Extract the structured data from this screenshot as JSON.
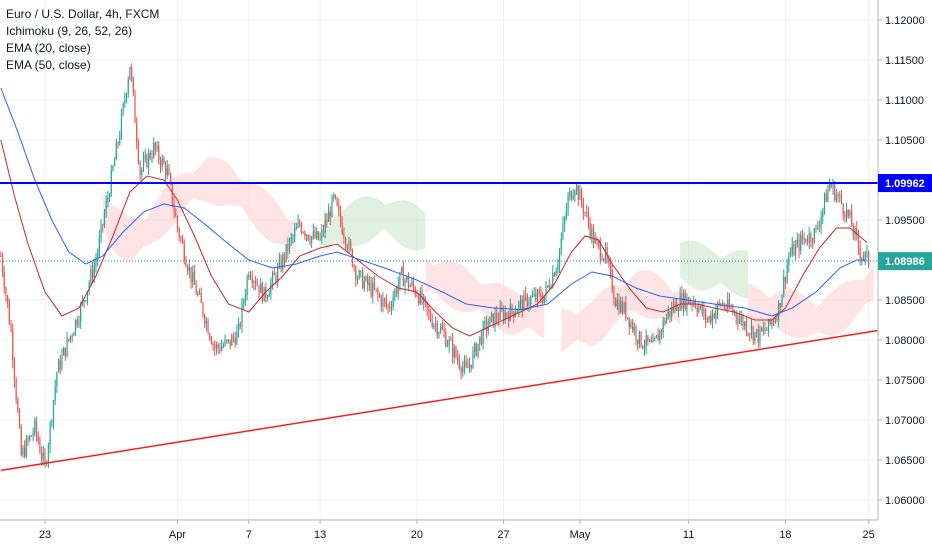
{
  "legend": {
    "title": "Euro / U.S. Dollar, 4h, FXCM",
    "ind1": "Ichimoku (9, 26, 52, 26)",
    "ind2": "EMA (20, close)",
    "ind3": "EMA (50, close)"
  },
  "colors": {
    "up": "#26a69a",
    "down": "#ef5350",
    "ema20": "#c62828",
    "ema50": "#2962ff",
    "resistance": "#0000ff",
    "support": "#ff1a1a",
    "cloud_bear": "#ffcdd2",
    "cloud_bull": "#c8e6c9",
    "grid": "#eef0f3",
    "last_price": "#26a69a"
  },
  "chart_data": {
    "type": "candlestick",
    "y_axis": {
      "min": 1.0575,
      "max": 1.1225,
      "ticks": [
        "1.12000",
        "1.11500",
        "1.11000",
        "1.10500",
        "1.10000",
        "1.09500",
        "1.09000",
        "1.08500",
        "1.08000",
        "1.07500",
        "1.07000",
        "1.06500",
        "1.06000"
      ]
    },
    "x_axis": {
      "labels": [
        "23",
        "Apr",
        "7",
        "13",
        "20",
        "27",
        "May",
        "11",
        "18",
        "25"
      ],
      "label_bar_index": [
        26,
        104,
        146,
        188,
        245,
        296,
        341,
        405,
        462,
        511
      ]
    },
    "bars_total": 517,
    "horizontal_line": {
      "value": 1.09962,
      "label": "1.09962"
    },
    "last_price": {
      "value": 1.08986,
      "label": "1.08986"
    },
    "trend_line": {
      "from": {
        "bar": 0,
        "price": 1.0637
      },
      "to": {
        "bar": 517,
        "price": 1.0812
      }
    },
    "price_path": [
      [
        0,
        1.0905
      ],
      [
        6,
        1.081
      ],
      [
        12,
        1.0655
      ],
      [
        20,
        1.069
      ],
      [
        26,
        1.064
      ],
      [
        33,
        1.076
      ],
      [
        40,
        1.08
      ],
      [
        48,
        1.0845
      ],
      [
        56,
        1.09
      ],
      [
        64,
        1.099
      ],
      [
        70,
        1.106
      ],
      [
        76,
        1.1145
      ],
      [
        82,
        1.101
      ],
      [
        90,
        1.104
      ],
      [
        98,
        1.101
      ],
      [
        104,
        1.094
      ],
      [
        112,
        1.088
      ],
      [
        120,
        1.083
      ],
      [
        126,
        1.079
      ],
      [
        134,
        1.0795
      ],
      [
        140,
        1.081
      ],
      [
        146,
        1.089
      ],
      [
        155,
        1.0855
      ],
      [
        163,
        1.0885
      ],
      [
        170,
        1.092
      ],
      [
        176,
        1.0945
      ],
      [
        182,
        1.093
      ],
      [
        188,
        1.0925
      ],
      [
        196,
        1.0975
      ],
      [
        202,
        1.0935
      ],
      [
        210,
        1.088
      ],
      [
        220,
        1.086
      ],
      [
        228,
        1.084
      ],
      [
        236,
        1.088
      ],
      [
        245,
        1.086
      ],
      [
        252,
        1.083
      ],
      [
        260,
        1.081
      ],
      [
        268,
        1.078
      ],
      [
        274,
        1.076
      ],
      [
        280,
        1.079
      ],
      [
        285,
        1.0815
      ],
      [
        292,
        1.083
      ],
      [
        300,
        1.0835
      ],
      [
        310,
        1.085
      ],
      [
        320,
        1.0855
      ],
      [
        328,
        1.09
      ],
      [
        334,
        1.0975
      ],
      [
        338,
        1.0995
      ],
      [
        344,
        1.096
      ],
      [
        350,
        1.092
      ],
      [
        356,
        1.0905
      ],
      [
        362,
        1.085
      ],
      [
        368,
        1.0835
      ],
      [
        376,
        1.08
      ],
      [
        384,
        1.079
      ],
      [
        392,
        1.083
      ],
      [
        400,
        1.085
      ],
      [
        408,
        1.085
      ],
      [
        416,
        1.0825
      ],
      [
        424,
        1.0845
      ],
      [
        432,
        1.0835
      ],
      [
        440,
        1.0815
      ],
      [
        446,
        1.0805
      ],
      [
        452,
        1.0815
      ],
      [
        458,
        1.084
      ],
      [
        464,
        1.0905
      ],
      [
        472,
        1.0925
      ],
      [
        480,
        1.0935
      ],
      [
        488,
        1.0995
      ],
      [
        494,
        1.0975
      ],
      [
        500,
        1.095
      ],
      [
        506,
        1.091
      ],
      [
        511,
        1.0899
      ]
    ],
    "ema20_path": [
      [
        0,
        1.105
      ],
      [
        8,
        1.098
      ],
      [
        16,
        1.092
      ],
      [
        26,
        1.086
      ],
      [
        36,
        1.083
      ],
      [
        46,
        1.084
      ],
      [
        56,
        1.088
      ],
      [
        66,
        1.093
      ],
      [
        76,
        1.0985
      ],
      [
        86,
        1.1005
      ],
      [
        96,
        1.1
      ],
      [
        104,
        1.0975
      ],
      [
        114,
        1.093
      ],
      [
        124,
        1.088
      ],
      [
        134,
        1.0845
      ],
      [
        146,
        1.0835
      ],
      [
        156,
        1.086
      ],
      [
        166,
        1.088
      ],
      [
        176,
        1.0905
      ],
      [
        188,
        1.0915
      ],
      [
        198,
        1.092
      ],
      [
        210,
        1.09
      ],
      [
        222,
        1.088
      ],
      [
        234,
        1.0865
      ],
      [
        245,
        1.086
      ],
      [
        256,
        1.0835
      ],
      [
        266,
        1.0815
      ],
      [
        276,
        1.0805
      ],
      [
        286,
        1.0815
      ],
      [
        296,
        1.0825
      ],
      [
        306,
        1.0835
      ],
      [
        316,
        1.0845
      ],
      [
        326,
        1.087
      ],
      [
        336,
        1.091
      ],
      [
        344,
        1.093
      ],
      [
        352,
        1.0925
      ],
      [
        360,
        1.0895
      ],
      [
        370,
        1.0865
      ],
      [
        380,
        1.084
      ],
      [
        390,
        1.0835
      ],
      [
        400,
        1.0845
      ],
      [
        410,
        1.0845
      ],
      [
        420,
        1.084
      ],
      [
        432,
        1.0835
      ],
      [
        444,
        1.0825
      ],
      [
        454,
        1.0825
      ],
      [
        462,
        1.084
      ],
      [
        472,
        1.088
      ],
      [
        482,
        1.0915
      ],
      [
        492,
        1.094
      ],
      [
        500,
        1.094
      ],
      [
        511,
        1.092
      ]
    ],
    "ema50_path": [
      [
        0,
        1.1115
      ],
      [
        10,
        1.106
      ],
      [
        20,
        1.1
      ],
      [
        30,
        1.095
      ],
      [
        40,
        1.091
      ],
      [
        50,
        1.0895
      ],
      [
        60,
        1.0905
      ],
      [
        72,
        1.0935
      ],
      [
        84,
        1.096
      ],
      [
        96,
        1.097
      ],
      [
        108,
        1.0965
      ],
      [
        120,
        1.0945
      ],
      [
        134,
        1.092
      ],
      [
        146,
        1.09
      ],
      [
        160,
        1.089
      ],
      [
        174,
        1.0895
      ],
      [
        188,
        1.0905
      ],
      [
        198,
        1.091
      ],
      [
        212,
        1.09
      ],
      [
        226,
        1.089
      ],
      [
        245,
        1.0875
      ],
      [
        260,
        1.086
      ],
      [
        274,
        1.0845
      ],
      [
        290,
        1.084
      ],
      [
        306,
        1.0838
      ],
      [
        322,
        1.0845
      ],
      [
        336,
        1.087
      ],
      [
        348,
        1.0885
      ],
      [
        360,
        1.088
      ],
      [
        374,
        1.0865
      ],
      [
        388,
        1.0855
      ],
      [
        404,
        1.085
      ],
      [
        420,
        1.0845
      ],
      [
        438,
        1.084
      ],
      [
        454,
        1.083
      ],
      [
        466,
        1.084
      ],
      [
        480,
        1.086
      ],
      [
        494,
        1.089
      ],
      [
        504,
        1.09
      ],
      [
        511,
        1.09
      ]
    ]
  }
}
